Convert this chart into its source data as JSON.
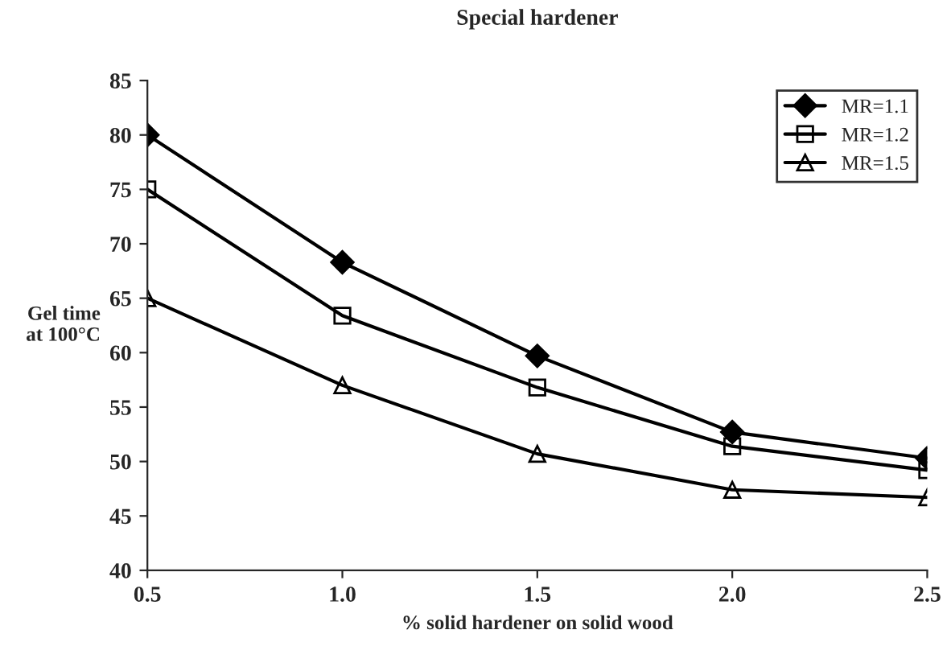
{
  "chart_data": {
    "type": "line",
    "title": "Special hardener",
    "xlabel": "% solid hardener on solid wood",
    "ylabel": "Gel time\nat 100°C",
    "x": [
      0.5,
      1.0,
      1.5,
      2.0,
      2.5
    ],
    "series": [
      {
        "name": "MR=1.1",
        "color": "#000000",
        "marker": "diamond",
        "values": [
          80,
          68.3,
          59.7,
          52.7,
          50.3
        ]
      },
      {
        "name": "MR=1.2",
        "color": "#000000",
        "marker": "square",
        "values": [
          75,
          63.4,
          56.8,
          51.4,
          49.2
        ]
      },
      {
        "name": "MR=1.5",
        "color": "#000000",
        "marker": "triangle",
        "values": [
          65,
          57,
          50.7,
          47.4,
          46.7
        ]
      }
    ],
    "xlim": [
      0.5,
      2.5
    ],
    "xticks": [
      {
        "value": 0.5,
        "label": "0.5"
      },
      {
        "value": 1.0,
        "label": "1.0"
      },
      {
        "value": 1.5,
        "label": "1.5"
      },
      {
        "value": 2.0,
        "label": "2.0"
      },
      {
        "value": 2.5,
        "label": "2.5"
      }
    ],
    "ylim": [
      40,
      85
    ],
    "yticks": [
      40,
      45,
      50,
      55,
      60,
      65,
      70,
      75,
      80,
      85
    ],
    "grid": false,
    "legend": "top right",
    "line_style": "solid"
  }
}
